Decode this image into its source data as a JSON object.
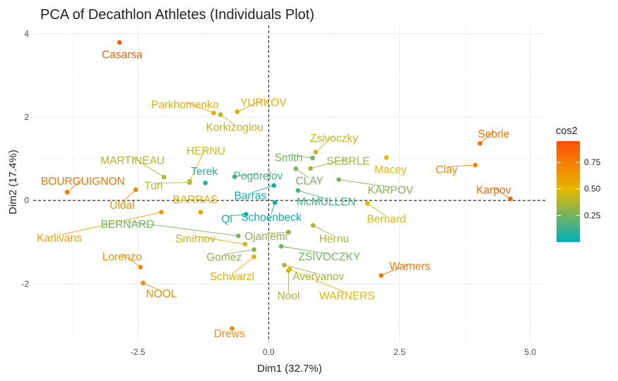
{
  "chart_data": {
    "type": "scatter",
    "title": "PCA of Decathlon Athletes (Individuals Plot)",
    "xlabel": "Dim1 (32.7%)",
    "ylabel": "Dim2 (17.4%)",
    "xlim": [
      -4.5,
      5.3
    ],
    "ylim": [
      -3.4,
      4.2
    ],
    "xticks": [
      -2.5,
      0.0,
      2.5,
      5.0
    ],
    "xtick_labels": [
      "-2.5",
      "0.0",
      "2.5",
      "5.0"
    ],
    "yticks": [
      -2,
      0,
      2,
      4
    ],
    "ytick_labels": [
      "-2",
      "0",
      "2",
      "4"
    ],
    "grid": true,
    "reference_lines": {
      "x": 0,
      "y": 0,
      "style": "dashed"
    },
    "color_scale": {
      "variable": "cos2",
      "legend_title": "cos2",
      "legend_position": "right",
      "min": 0.0,
      "max": 0.95,
      "stops": [
        {
          "value": 0.0,
          "color": "#00AFBB"
        },
        {
          "value": 0.5,
          "color": "#E7B800"
        },
        {
          "value": 0.95,
          "color": "#FC4E07"
        }
      ],
      "ticks": [
        0.25,
        0.5,
        0.75
      ],
      "tick_labels": [
        "0.25",
        "0.50",
        "0.75"
      ]
    },
    "points": [
      {
        "label": "Casarsa",
        "x": -2.85,
        "y": 3.79,
        "cos2": 0.87,
        "lx": -2.8,
        "ly": 3.5
      },
      {
        "label": "Parkhomenko",
        "x": -1.05,
        "y": 2.1,
        "cos2": 0.56,
        "lx": -1.6,
        "ly": 2.3
      },
      {
        "label": "YURKOV",
        "x": -0.6,
        "y": 2.13,
        "cos2": 0.55,
        "lx": -0.1,
        "ly": 2.35
      },
      {
        "label": "Korkizoglou",
        "x": -0.92,
        "y": 2.06,
        "cos2": 0.4,
        "lx": -0.65,
        "ly": 1.75
      },
      {
        "label": "Zsivoczky",
        "x": 0.9,
        "y": 1.16,
        "cos2": 0.42,
        "lx": 1.25,
        "ly": 1.49
      },
      {
        "label": "Sebrle",
        "x": 4.04,
        "y": 1.37,
        "cos2": 0.8,
        "lx": 4.3,
        "ly": 1.59
      },
      {
        "label": "HERNU",
        "x": -1.51,
        "y": 0.46,
        "cos2": 0.45,
        "lx": -1.2,
        "ly": 1.19
      },
      {
        "label": "Smith",
        "x": 0.84,
        "y": 1.02,
        "cos2": 0.25,
        "lx": 0.38,
        "ly": 1.03
      },
      {
        "label": "SEBRLE",
        "x": 0.8,
        "y": 0.77,
        "cos2": 0.35,
        "lx": 1.52,
        "ly": 0.94
      },
      {
        "label": "Macey",
        "x": 2.25,
        "y": 1.03,
        "cos2": 0.5,
        "lx": 2.33,
        "ly": 0.74
      },
      {
        "label": "Clay",
        "x": 3.95,
        "y": 0.85,
        "cos2": 0.7,
        "lx": 3.4,
        "ly": 0.74
      },
      {
        "label": "MARTINEAU",
        "x": -2.0,
        "y": 0.56,
        "cos2": 0.38,
        "lx": -2.6,
        "ly": 0.96
      },
      {
        "label": "Terek",
        "x": -1.21,
        "y": 0.42,
        "cos2": 0.08,
        "lx": -1.23,
        "ly": 0.7
      },
      {
        "label": "Pogorelov",
        "x": -0.65,
        "y": 0.57,
        "cos2": 0.15,
        "lx": -0.2,
        "ly": 0.59
      },
      {
        "label": "CLAY",
        "x": 0.52,
        "y": 0.76,
        "cos2": 0.25,
        "lx": 0.78,
        "ly": 0.47
      },
      {
        "label": "KARPOV",
        "x": 1.34,
        "y": 0.5,
        "cos2": 0.28,
        "lx": 2.33,
        "ly": 0.25
      },
      {
        "label": "BOURGUIGNON",
        "x": -3.85,
        "y": 0.2,
        "cos2": 0.78,
        "lx": -3.55,
        "ly": 0.46
      },
      {
        "label": "Turi",
        "x": -1.51,
        "y": 0.43,
        "cos2": 0.4,
        "lx": -2.2,
        "ly": 0.35
      },
      {
        "label": "Uldal",
        "x": -2.54,
        "y": 0.26,
        "cos2": 0.68,
        "lx": -2.8,
        "ly": -0.12
      },
      {
        "label": "Barras",
        "x": 0.1,
        "y": 0.36,
        "cos2": 0.02,
        "lx": -0.35,
        "ly": 0.11
      },
      {
        "label": "BARRAS",
        "x": -1.3,
        "y": -0.28,
        "cos2": 0.58,
        "lx": -1.4,
        "ly": 0.02
      },
      {
        "label": "McMULLEN",
        "x": 0.56,
        "y": 0.24,
        "cos2": 0.15,
        "lx": 1.1,
        "ly": -0.03
      },
      {
        "label": "Karpov",
        "x": 4.62,
        "y": 0.04,
        "cos2": 0.85,
        "lx": 4.3,
        "ly": 0.25
      },
      {
        "label": "Bernard",
        "x": 1.89,
        "y": -0.07,
        "cos2": 0.48,
        "lx": 2.25,
        "ly": -0.45
      },
      {
        "label": "Qi",
        "x": -0.43,
        "y": -0.33,
        "cos2": 0.07,
        "lx": -0.8,
        "ly": -0.45
      },
      {
        "label": "Schoenbeck",
        "x": 0.12,
        "y": -0.05,
        "cos2": 0.02,
        "lx": 0.05,
        "ly": -0.4
      },
      {
        "label": "Karlivans",
        "x": -2.05,
        "y": -0.28,
        "cos2": 0.6,
        "lx": -4.0,
        "ly": -0.9
      },
      {
        "label": "BERNARD",
        "x": -0.58,
        "y": -0.85,
        "cos2": 0.25,
        "lx": -2.7,
        "ly": -0.57
      },
      {
        "label": "Hernu",
        "x": 0.85,
        "y": -0.6,
        "cos2": 0.38,
        "lx": 1.25,
        "ly": -0.92
      },
      {
        "label": "Smirnov",
        "x": -0.45,
        "y": -1.05,
        "cos2": 0.45,
        "lx": -1.4,
        "ly": -0.92
      },
      {
        "label": "Ojaniemi",
        "x": 0.38,
        "y": -0.76,
        "cos2": 0.3,
        "lx": -0.05,
        "ly": -0.86
      },
      {
        "label": "Gomez",
        "x": -0.28,
        "y": -1.18,
        "cos2": 0.3,
        "lx": -0.85,
        "ly": -1.36
      },
      {
        "label": "ZSIVOCZKY",
        "x": 0.24,
        "y": -1.1,
        "cos2": 0.25,
        "lx": 1.16,
        "ly": -1.35
      },
      {
        "label": "Lorenzo",
        "x": -2.45,
        "y": -1.6,
        "cos2": 0.68,
        "lx": -2.8,
        "ly": -1.35
      },
      {
        "label": "Schwarzl",
        "x": -0.28,
        "y": -1.35,
        "cos2": 0.55,
        "lx": -0.7,
        "ly": -1.83
      },
      {
        "label": "Averyanov",
        "x": 0.3,
        "y": -1.55,
        "cos2": 0.35,
        "lx": 0.95,
        "ly": -1.83
      },
      {
        "label": "Warners",
        "x": 2.15,
        "y": -1.8,
        "cos2": 0.78,
        "lx": 2.7,
        "ly": -1.58
      },
      {
        "label": "Nool",
        "x": 0.38,
        "y": -1.68,
        "cos2": 0.38,
        "lx": 0.38,
        "ly": -2.29
      },
      {
        "label": "WARNERS",
        "x": 0.4,
        "y": -1.65,
        "cos2": 0.5,
        "lx": 1.5,
        "ly": -2.29
      },
      {
        "label": "NOOL",
        "x": -2.4,
        "y": -1.98,
        "cos2": 0.68,
        "lx": -2.05,
        "ly": -2.24
      },
      {
        "label": "Drews",
        "x": -0.7,
        "y": -3.07,
        "cos2": 0.68,
        "lx": -0.75,
        "ly": -3.2
      }
    ]
  }
}
